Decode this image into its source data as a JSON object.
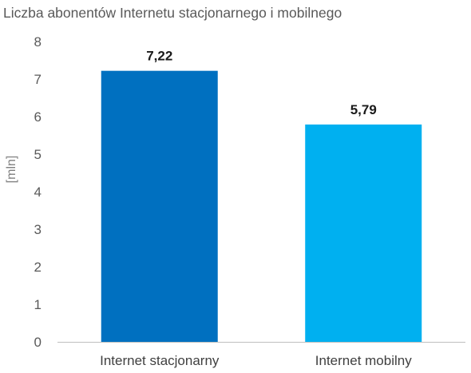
{
  "chart_data": {
    "type": "bar",
    "title": "Liczba abonentów Internetu stacjonarnego i mobilnego",
    "ylabel": "[mln]",
    "xlabel": "",
    "ylim": [
      0,
      8
    ],
    "yticks": [
      "0",
      "1",
      "2",
      "3",
      "4",
      "5",
      "6",
      "7",
      "8"
    ],
    "categories": [
      "Internet stacjonarny",
      "Internet mobilny"
    ],
    "values": [
      7.22,
      5.79
    ],
    "value_labels": [
      "7,22",
      "5,79"
    ],
    "colors": [
      "#0070c0",
      "#00b0f0"
    ],
    "grid": false,
    "legend": "none"
  }
}
